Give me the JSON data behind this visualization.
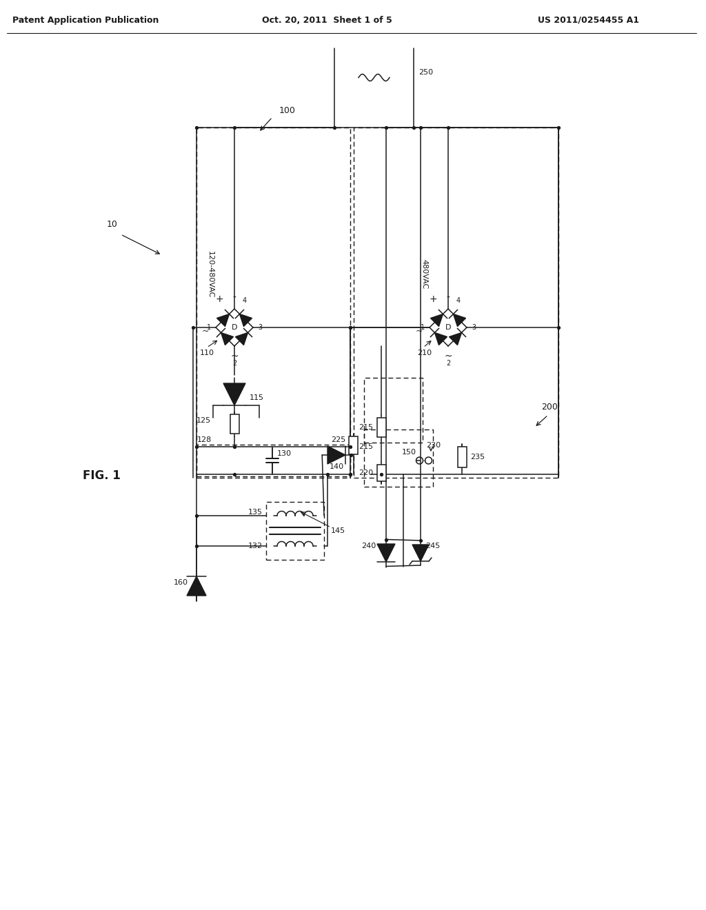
{
  "header_left": "Patent Application Publication",
  "header_mid": "Oct. 20, 2011  Sheet 1 of 5",
  "header_right": "US 2011/0254455 A1",
  "bg_color": "#ffffff",
  "line_color": "#1a1a1a",
  "fig_label": "FIG. 1"
}
